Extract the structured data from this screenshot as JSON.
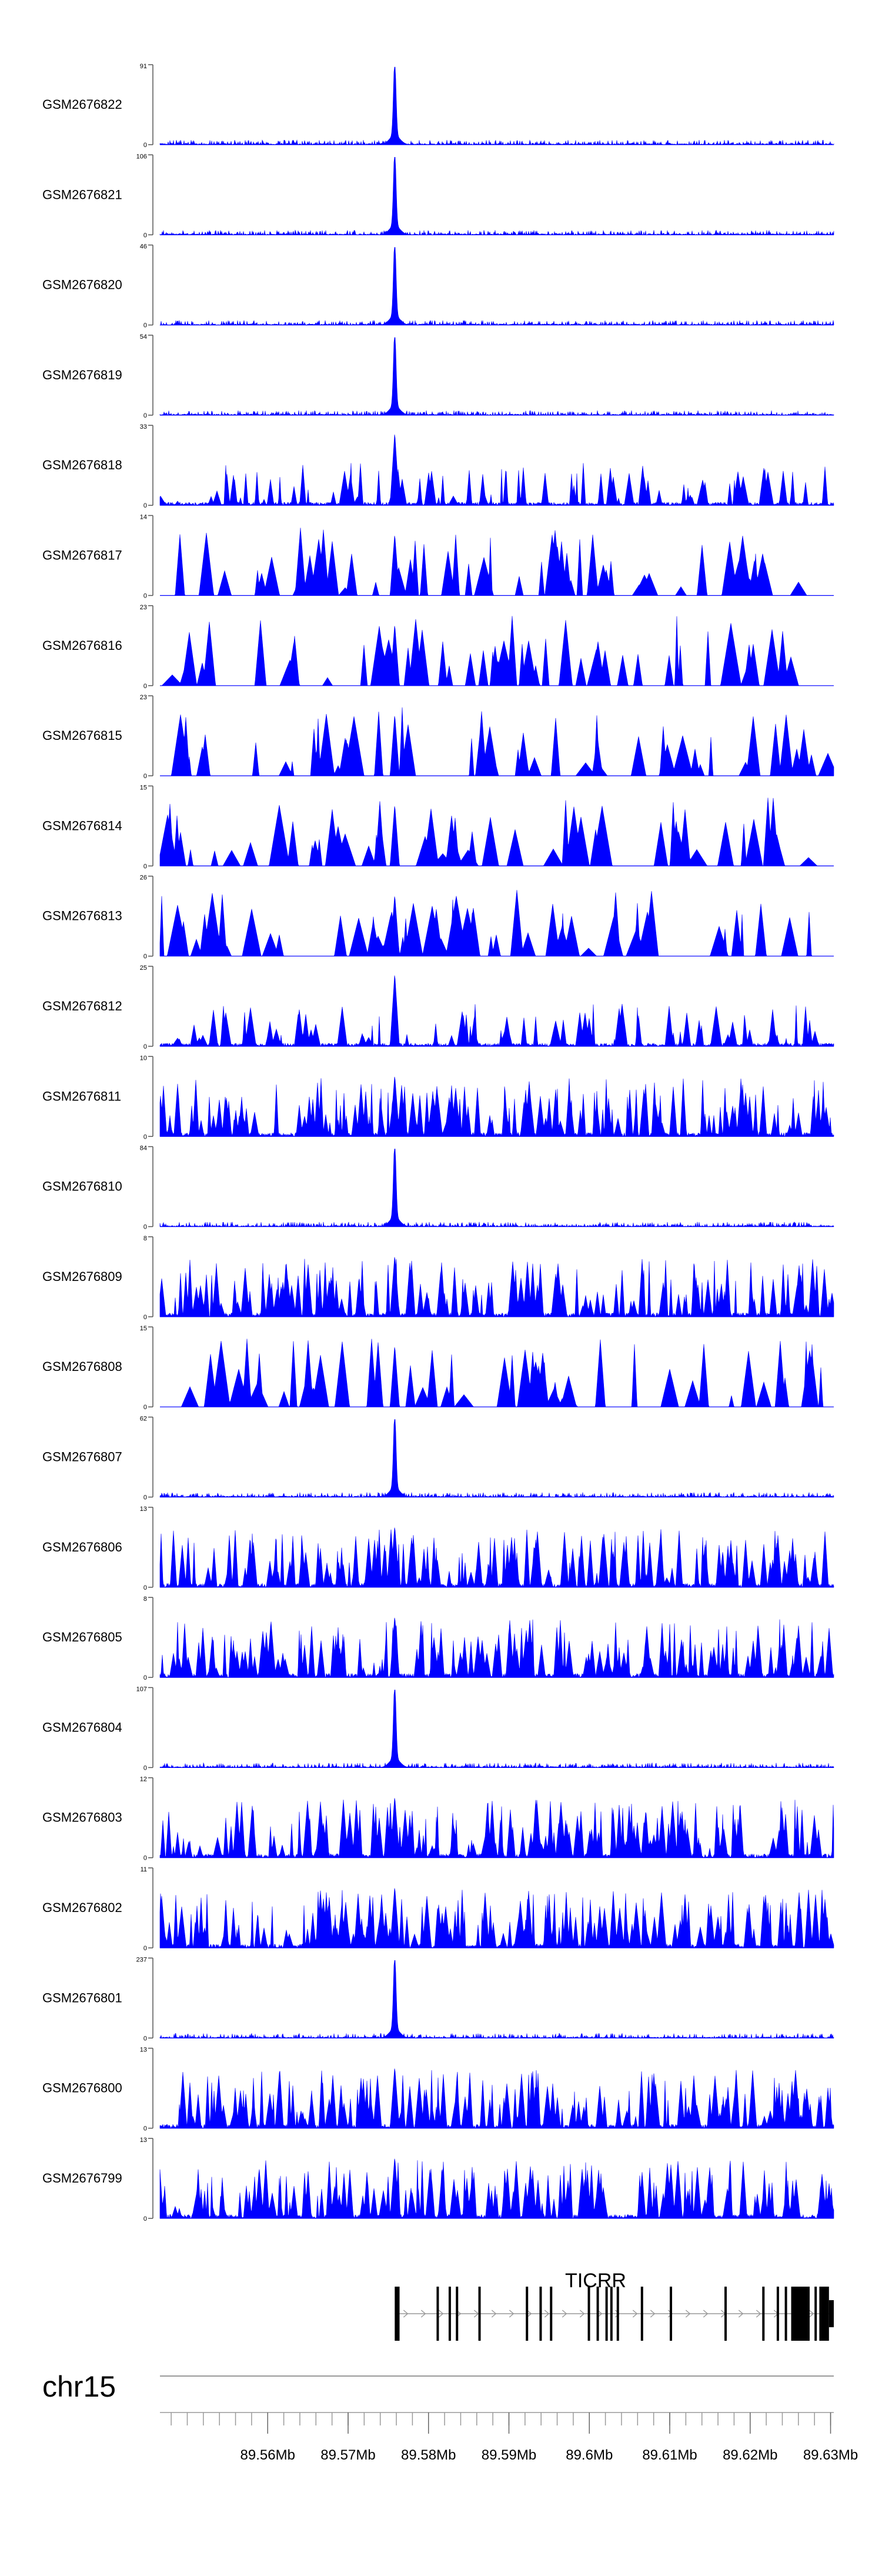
{
  "chart_data": {
    "type": "area",
    "x_range": [
      89.5466,
      89.6304
    ],
    "x_unit": "Mb",
    "color": "#0000ff",
    "tracks": [
      {
        "name": "GSM2676822",
        "ymax": 91,
        "ymin_label": 0,
        "style": "low",
        "seed": 22
      },
      {
        "name": "GSM2676821",
        "ymax": 106,
        "ymin_label": 0,
        "style": "low",
        "seed": 21
      },
      {
        "name": "GSM2676820",
        "ymax": 46,
        "ymin_label": 0,
        "style": "low",
        "seed": 20
      },
      {
        "name": "GSM2676819",
        "ymax": 54,
        "ymin_label": 0,
        "style": "low",
        "seed": 19
      },
      {
        "name": "GSM2676818",
        "ymax": 33,
        "ymin_label": 0,
        "style": "medium",
        "seed": 18
      },
      {
        "name": "GSM2676817",
        "ymax": 14,
        "ymin_label": 0,
        "style": "sparse",
        "seed": 17
      },
      {
        "name": "GSM2676816",
        "ymax": 23,
        "ymin_label": 0,
        "style": "sparse",
        "seed": 16
      },
      {
        "name": "GSM2676815",
        "ymax": 23,
        "ymin_label": 0,
        "style": "sparse",
        "seed": 15
      },
      {
        "name": "GSM2676814",
        "ymax": 15,
        "ymin_label": 0,
        "style": "sparse",
        "seed": 14
      },
      {
        "name": "GSM2676813",
        "ymax": 26,
        "ymin_label": 0,
        "style": "sparse",
        "seed": 13
      },
      {
        "name": "GSM2676812",
        "ymax": 25,
        "ymin_label": 0,
        "style": "medium",
        "seed": 12
      },
      {
        "name": "GSM2676811",
        "ymax": 10,
        "ymin_label": 0,
        "style": "dense",
        "seed": 11
      },
      {
        "name": "GSM2676810",
        "ymax": 84,
        "ymin_label": 0,
        "style": "low",
        "seed": 10
      },
      {
        "name": "GSM2676809",
        "ymax": 8,
        "ymin_label": 0,
        "style": "dense",
        "seed": 9
      },
      {
        "name": "GSM2676808",
        "ymax": 15,
        "ymin_label": 0,
        "style": "sparse",
        "seed": 8
      },
      {
        "name": "GSM2676807",
        "ymax": 62,
        "ymin_label": 0,
        "style": "low",
        "seed": 7
      },
      {
        "name": "GSM2676806",
        "ymax": 13,
        "ymin_label": 0,
        "style": "dense",
        "seed": 6
      },
      {
        "name": "GSM2676805",
        "ymax": 8,
        "ymin_label": 0,
        "style": "dense",
        "seed": 5
      },
      {
        "name": "GSM2676804",
        "ymax": 107,
        "ymin_label": 0,
        "style": "low",
        "seed": 4
      },
      {
        "name": "GSM2676803",
        "ymax": 12,
        "ymin_label": 0,
        "style": "dense",
        "seed": 3
      },
      {
        "name": "GSM2676802",
        "ymax": 11,
        "ymin_label": 0,
        "style": "dense",
        "seed": 2
      },
      {
        "name": "GSM2676801",
        "ymax": 237,
        "ymin_label": 0,
        "style": "low",
        "seed": 1
      },
      {
        "name": "GSM2676800",
        "ymax": 13,
        "ymin_label": 0,
        "style": "dense",
        "seed": 100
      },
      {
        "name": "GSM2676799",
        "ymax": 13,
        "ymin_label": 0,
        "style": "dense",
        "seed": 99
      }
    ],
    "peak_x": 89.5758,
    "gene": {
      "name": "TICRR",
      "strand": "+",
      "start": 89.5758,
      "end": 89.6304,
      "exons": [
        {
          "start": 89.5758,
          "end": 89.5764
        },
        {
          "start": 89.581,
          "end": 89.5812
        },
        {
          "start": 89.5825,
          "end": 89.5827
        },
        {
          "start": 89.5834,
          "end": 89.5836
        },
        {
          "start": 89.5862,
          "end": 89.5863
        },
        {
          "start": 89.5921,
          "end": 89.5923
        },
        {
          "start": 89.5938,
          "end": 89.594
        },
        {
          "start": 89.5951,
          "end": 89.5952
        },
        {
          "start": 89.5998,
          "end": 89.6
        },
        {
          "start": 89.6009,
          "end": 89.6011
        },
        {
          "start": 89.602,
          "end": 89.6022
        },
        {
          "start": 89.6026,
          "end": 89.6028
        },
        {
          "start": 89.6034,
          "end": 89.6036
        },
        {
          "start": 89.6064,
          "end": 89.6066
        },
        {
          "start": 89.61,
          "end": 89.6102
        },
        {
          "start": 89.6168,
          "end": 89.617
        },
        {
          "start": 89.6215,
          "end": 89.6216
        },
        {
          "start": 89.6233,
          "end": 89.6235
        },
        {
          "start": 89.6243,
          "end": 89.6245
        },
        {
          "start": 89.6251,
          "end": 89.6274
        },
        {
          "start": 89.628,
          "end": 89.6281
        },
        {
          "start": 89.6286,
          "end": 89.6298
        },
        {
          "start": 89.6298,
          "end": 89.6304
        }
      ]
    },
    "chromosome": "chr15",
    "x_ticks": [
      {
        "value": 89.56,
        "label": "89.56Mb"
      },
      {
        "value": 89.57,
        "label": "89.57Mb"
      },
      {
        "value": 89.58,
        "label": "89.58Mb"
      },
      {
        "value": 89.59,
        "label": "89.59Mb"
      },
      {
        "value": 89.6,
        "label": "89.6Mb"
      },
      {
        "value": 89.61,
        "label": "89.61Mb"
      },
      {
        "value": 89.62,
        "label": "89.62Mb"
      },
      {
        "value": 89.63,
        "label": "89.63Mb"
      }
    ],
    "minor_tick_step": 0.002
  }
}
